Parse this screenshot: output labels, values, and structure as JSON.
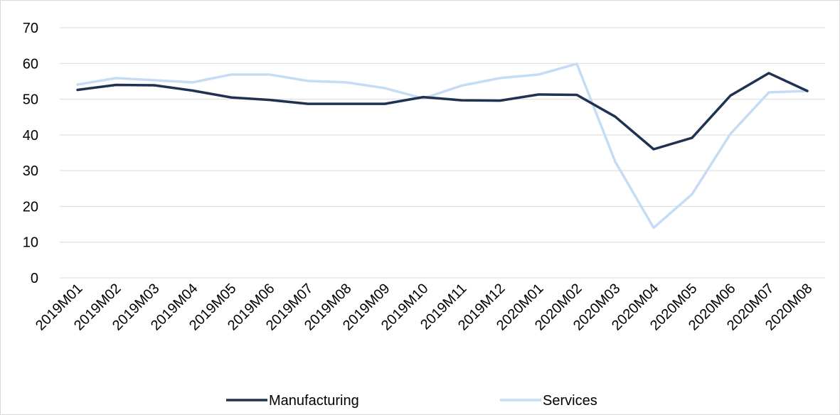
{
  "chart_data": {
    "type": "line",
    "title": "",
    "xlabel": "",
    "ylabel": "",
    "categories": [
      "2019M01",
      "2019M02",
      "2019M03",
      "2019M04",
      "2019M05",
      "2019M06",
      "2019M07",
      "2019M08",
      "2019M09",
      "2019M10",
      "2019M11",
      "2019M12",
      "2020M01",
      "2020M02",
      "2020M03",
      "2020M04",
      "2020M05",
      "2020M06",
      "2020M07",
      "2020M08"
    ],
    "ylim": [
      0,
      70
    ],
    "yticks": [
      0,
      10,
      20,
      30,
      40,
      50,
      60,
      70
    ],
    "grid": true,
    "legend_position": "bottom",
    "series": [
      {
        "name": "Manufacturing",
        "color": "#1f3251",
        "values": [
          52.6,
          54.0,
          53.9,
          52.4,
          50.5,
          49.8,
          48.7,
          48.7,
          48.7,
          50.6,
          49.7,
          49.6,
          51.3,
          51.2,
          45.1,
          36.0,
          39.2,
          51.0,
          57.3,
          52.3
        ]
      },
      {
        "name": "Services",
        "color": "#c6dcf5",
        "values": [
          54.1,
          55.9,
          55.3,
          54.7,
          56.9,
          56.9,
          55.1,
          54.7,
          53.1,
          50.2,
          53.8,
          55.9,
          56.9,
          59.9,
          32.5,
          14.0,
          23.4,
          40.3,
          51.9,
          52.3
        ]
      }
    ]
  }
}
